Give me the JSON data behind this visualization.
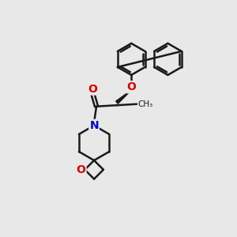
{
  "bg_color": "#e8e8e8",
  "bond_color": "#1a1a1a",
  "bond_width": 1.8,
  "atom_colors": {
    "O": "#dd0000",
    "N": "#0000cc",
    "C": "#1a1a1a"
  },
  "fig_width": 3.0,
  "fig_height": 3.0,
  "xlim": [
    0,
    10
  ],
  "ylim": [
    0,
    10
  ]
}
